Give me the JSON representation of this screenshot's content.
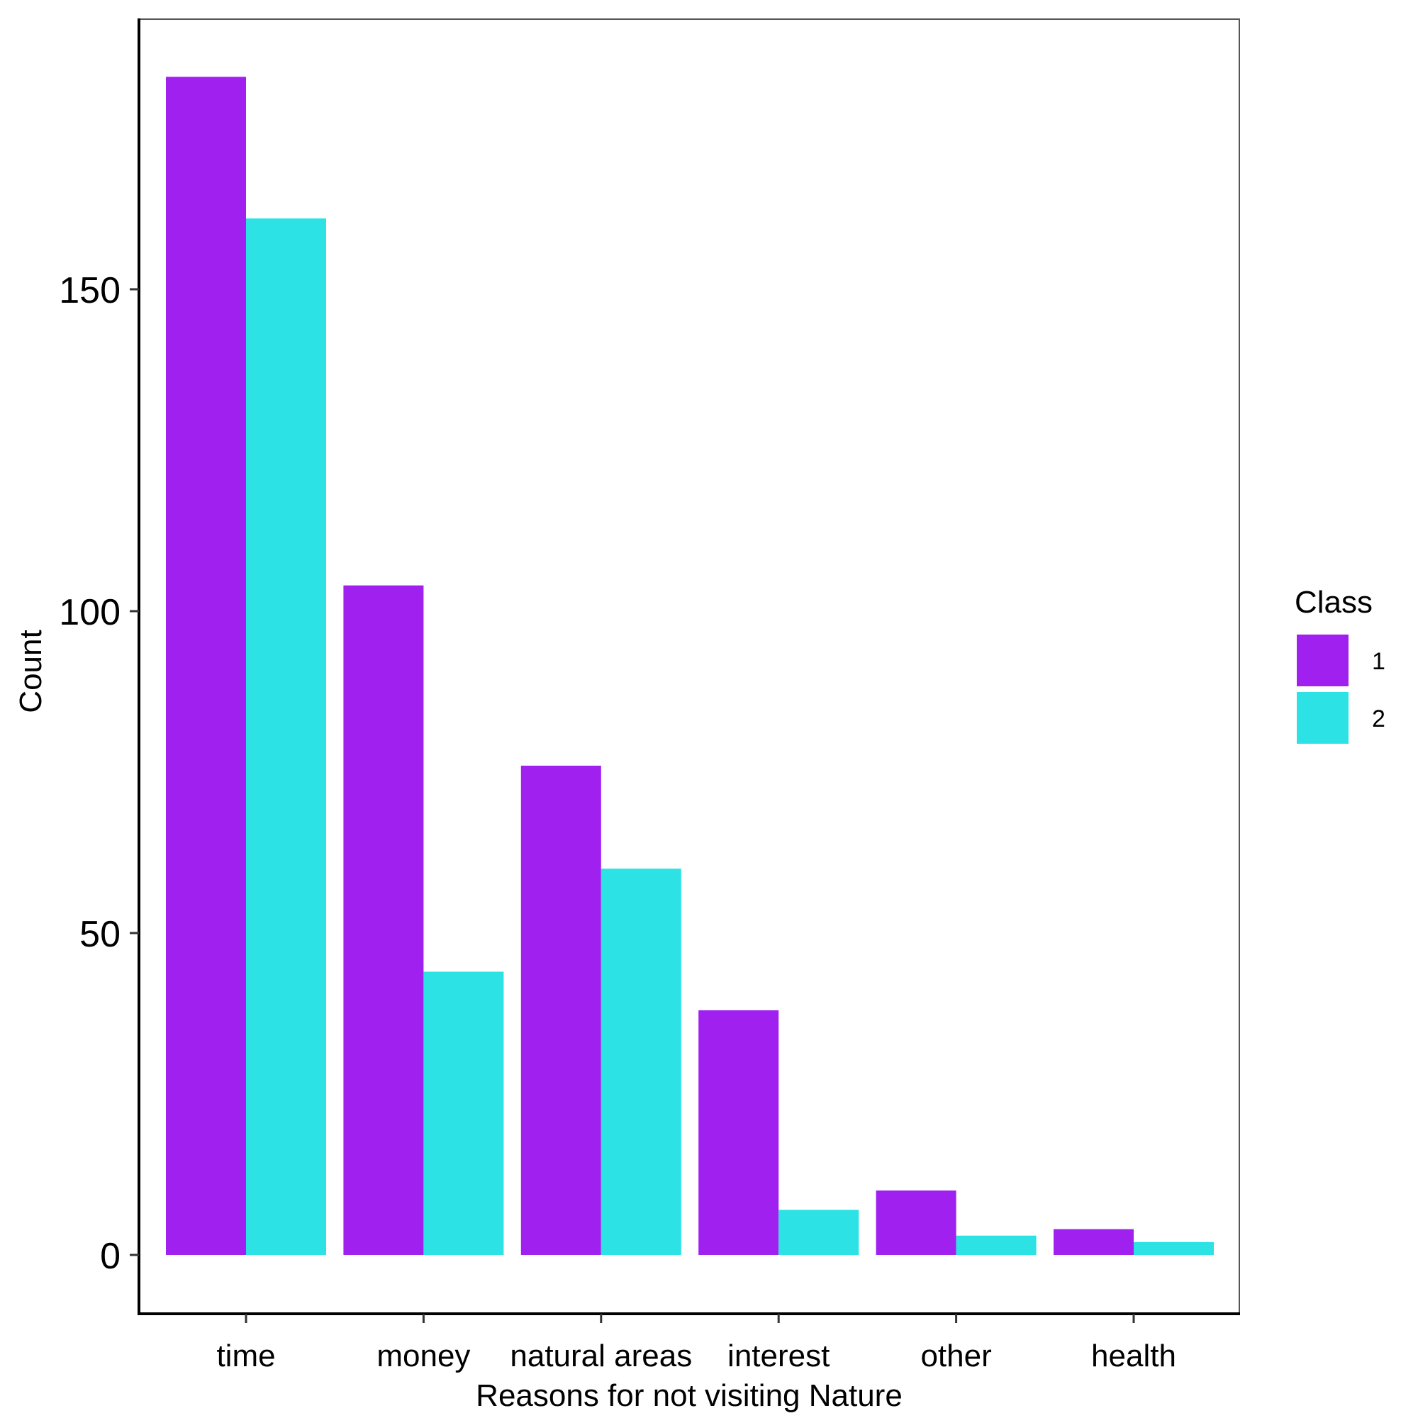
{
  "chart_data": {
    "type": "bar",
    "title": "",
    "xlabel": "Reasons for not visiting Nature",
    "ylabel": "Count",
    "categories": [
      "time",
      "money",
      "natural areas",
      "interest",
      "other",
      "health"
    ],
    "series": [
      {
        "name": "1",
        "color": "#A020F0",
        "values": [
          183,
          104,
          76,
          38,
          10,
          4
        ]
      },
      {
        "name": "2",
        "color": "#2CE2E4",
        "values": [
          161,
          44,
          60,
          7,
          3,
          2
        ]
      }
    ],
    "ylim": [
      -9,
      192
    ],
    "yticks": [
      0,
      50,
      100,
      150
    ],
    "ytick_labels": [
      "0",
      "50",
      "100",
      "150"
    ],
    "legend": {
      "title": "Class",
      "position": "right"
    },
    "grid": false
  }
}
